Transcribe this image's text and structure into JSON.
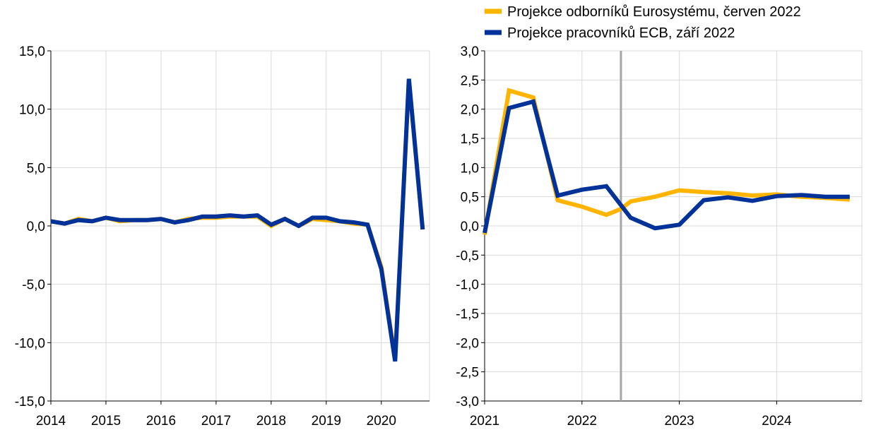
{
  "legend": [
    {
      "name": "Projekce odborníků Eurosystému, červen 2022",
      "color": "#FFB400"
    },
    {
      "name": "Projekce pracovníků ECB, září 2022",
      "color": "#003299"
    }
  ],
  "chart_data": [
    {
      "type": "line",
      "title": "",
      "xlabel": "",
      "ylabel": "",
      "x_ticks": [
        "2014",
        "2015",
        "2016",
        "2017",
        "2018",
        "2019",
        "2020"
      ],
      "y_ticks": [
        "15,0",
        "10,0",
        "5,0",
        "0,0",
        "-5,0",
        "-10,0",
        "-15,0"
      ],
      "xlim": [
        2014.0,
        2020.875
      ],
      "ylim": [
        -15,
        15
      ],
      "grid": true,
      "x": [
        2014.0,
        2014.25,
        2014.5,
        2014.75,
        2015.0,
        2015.25,
        2015.5,
        2015.75,
        2016.0,
        2016.25,
        2016.5,
        2016.75,
        2017.0,
        2017.25,
        2017.5,
        2017.75,
        2018.0,
        2018.25,
        2018.5,
        2018.75,
        2019.0,
        2019.25,
        2019.5,
        2019.75,
        2020.0,
        2020.25,
        2020.5,
        2020.75
      ],
      "series": [
        {
          "name": "Projekce odborníků Eurosystému, červen 2022",
          "color": "#FFB400",
          "values": [
            0.4,
            0.2,
            0.6,
            0.4,
            0.7,
            0.4,
            0.5,
            0.5,
            0.6,
            0.3,
            0.6,
            0.7,
            0.7,
            0.8,
            0.8,
            0.8,
            0.0,
            0.6,
            0.0,
            0.6,
            0.5,
            0.4,
            0.2,
            0.1,
            -3.5,
            -11.4,
            12.5,
            -0.3
          ]
        },
        {
          "name": "Projekce pracovníků ECB, září 2022",
          "color": "#003299",
          "values": [
            0.4,
            0.2,
            0.5,
            0.4,
            0.7,
            0.5,
            0.5,
            0.5,
            0.6,
            0.3,
            0.5,
            0.8,
            0.8,
            0.9,
            0.8,
            0.9,
            0.1,
            0.6,
            0.0,
            0.7,
            0.7,
            0.4,
            0.3,
            0.1,
            -3.7,
            -11.6,
            12.6,
            -0.3
          ]
        }
      ]
    },
    {
      "type": "line",
      "title": "",
      "xlabel": "",
      "ylabel": "",
      "x_ticks": [
        "2021",
        "2022",
        "2023",
        "2024"
      ],
      "y_ticks": [
        "3,0",
        "2,5",
        "2,0",
        "1,5",
        "1,0",
        "0,5",
        "0,0",
        "-0,5",
        "-1,0",
        "-1,5",
        "-2,0",
        "-2,5",
        "-3,0"
      ],
      "xlim": [
        2021.0,
        2024.875
      ],
      "ylim": [
        -3,
        3
      ],
      "grid": true,
      "vertical_marker_x": 2022.4,
      "x": [
        2021.0,
        2021.25,
        2021.5,
        2021.75,
        2022.0,
        2022.25,
        2022.5,
        2022.75,
        2023.0,
        2023.25,
        2023.5,
        2023.75,
        2024.0,
        2024.25,
        2024.5,
        2024.75
      ],
      "series": [
        {
          "name": "Projekce odborníků Eurosystému, červen 2022",
          "color": "#FFB400",
          "values": [
            -0.15,
            2.32,
            2.2,
            0.44,
            0.33,
            0.19,
            0.42,
            0.5,
            0.61,
            0.58,
            0.56,
            0.52,
            0.54,
            0.5,
            0.48,
            0.45
          ],
          "break_after_x": 2022.25,
          "continue_from_y": 0.29
        },
        {
          "name": "Projekce pracovníků ECB, září 2022",
          "color": "#003299",
          "values": [
            -0.12,
            2.02,
            2.13,
            0.52,
            0.62,
            0.68,
            0.14,
            -0.04,
            0.02,
            0.44,
            0.49,
            0.43,
            0.51,
            0.53,
            0.5,
            0.5
          ]
        }
      ]
    }
  ]
}
